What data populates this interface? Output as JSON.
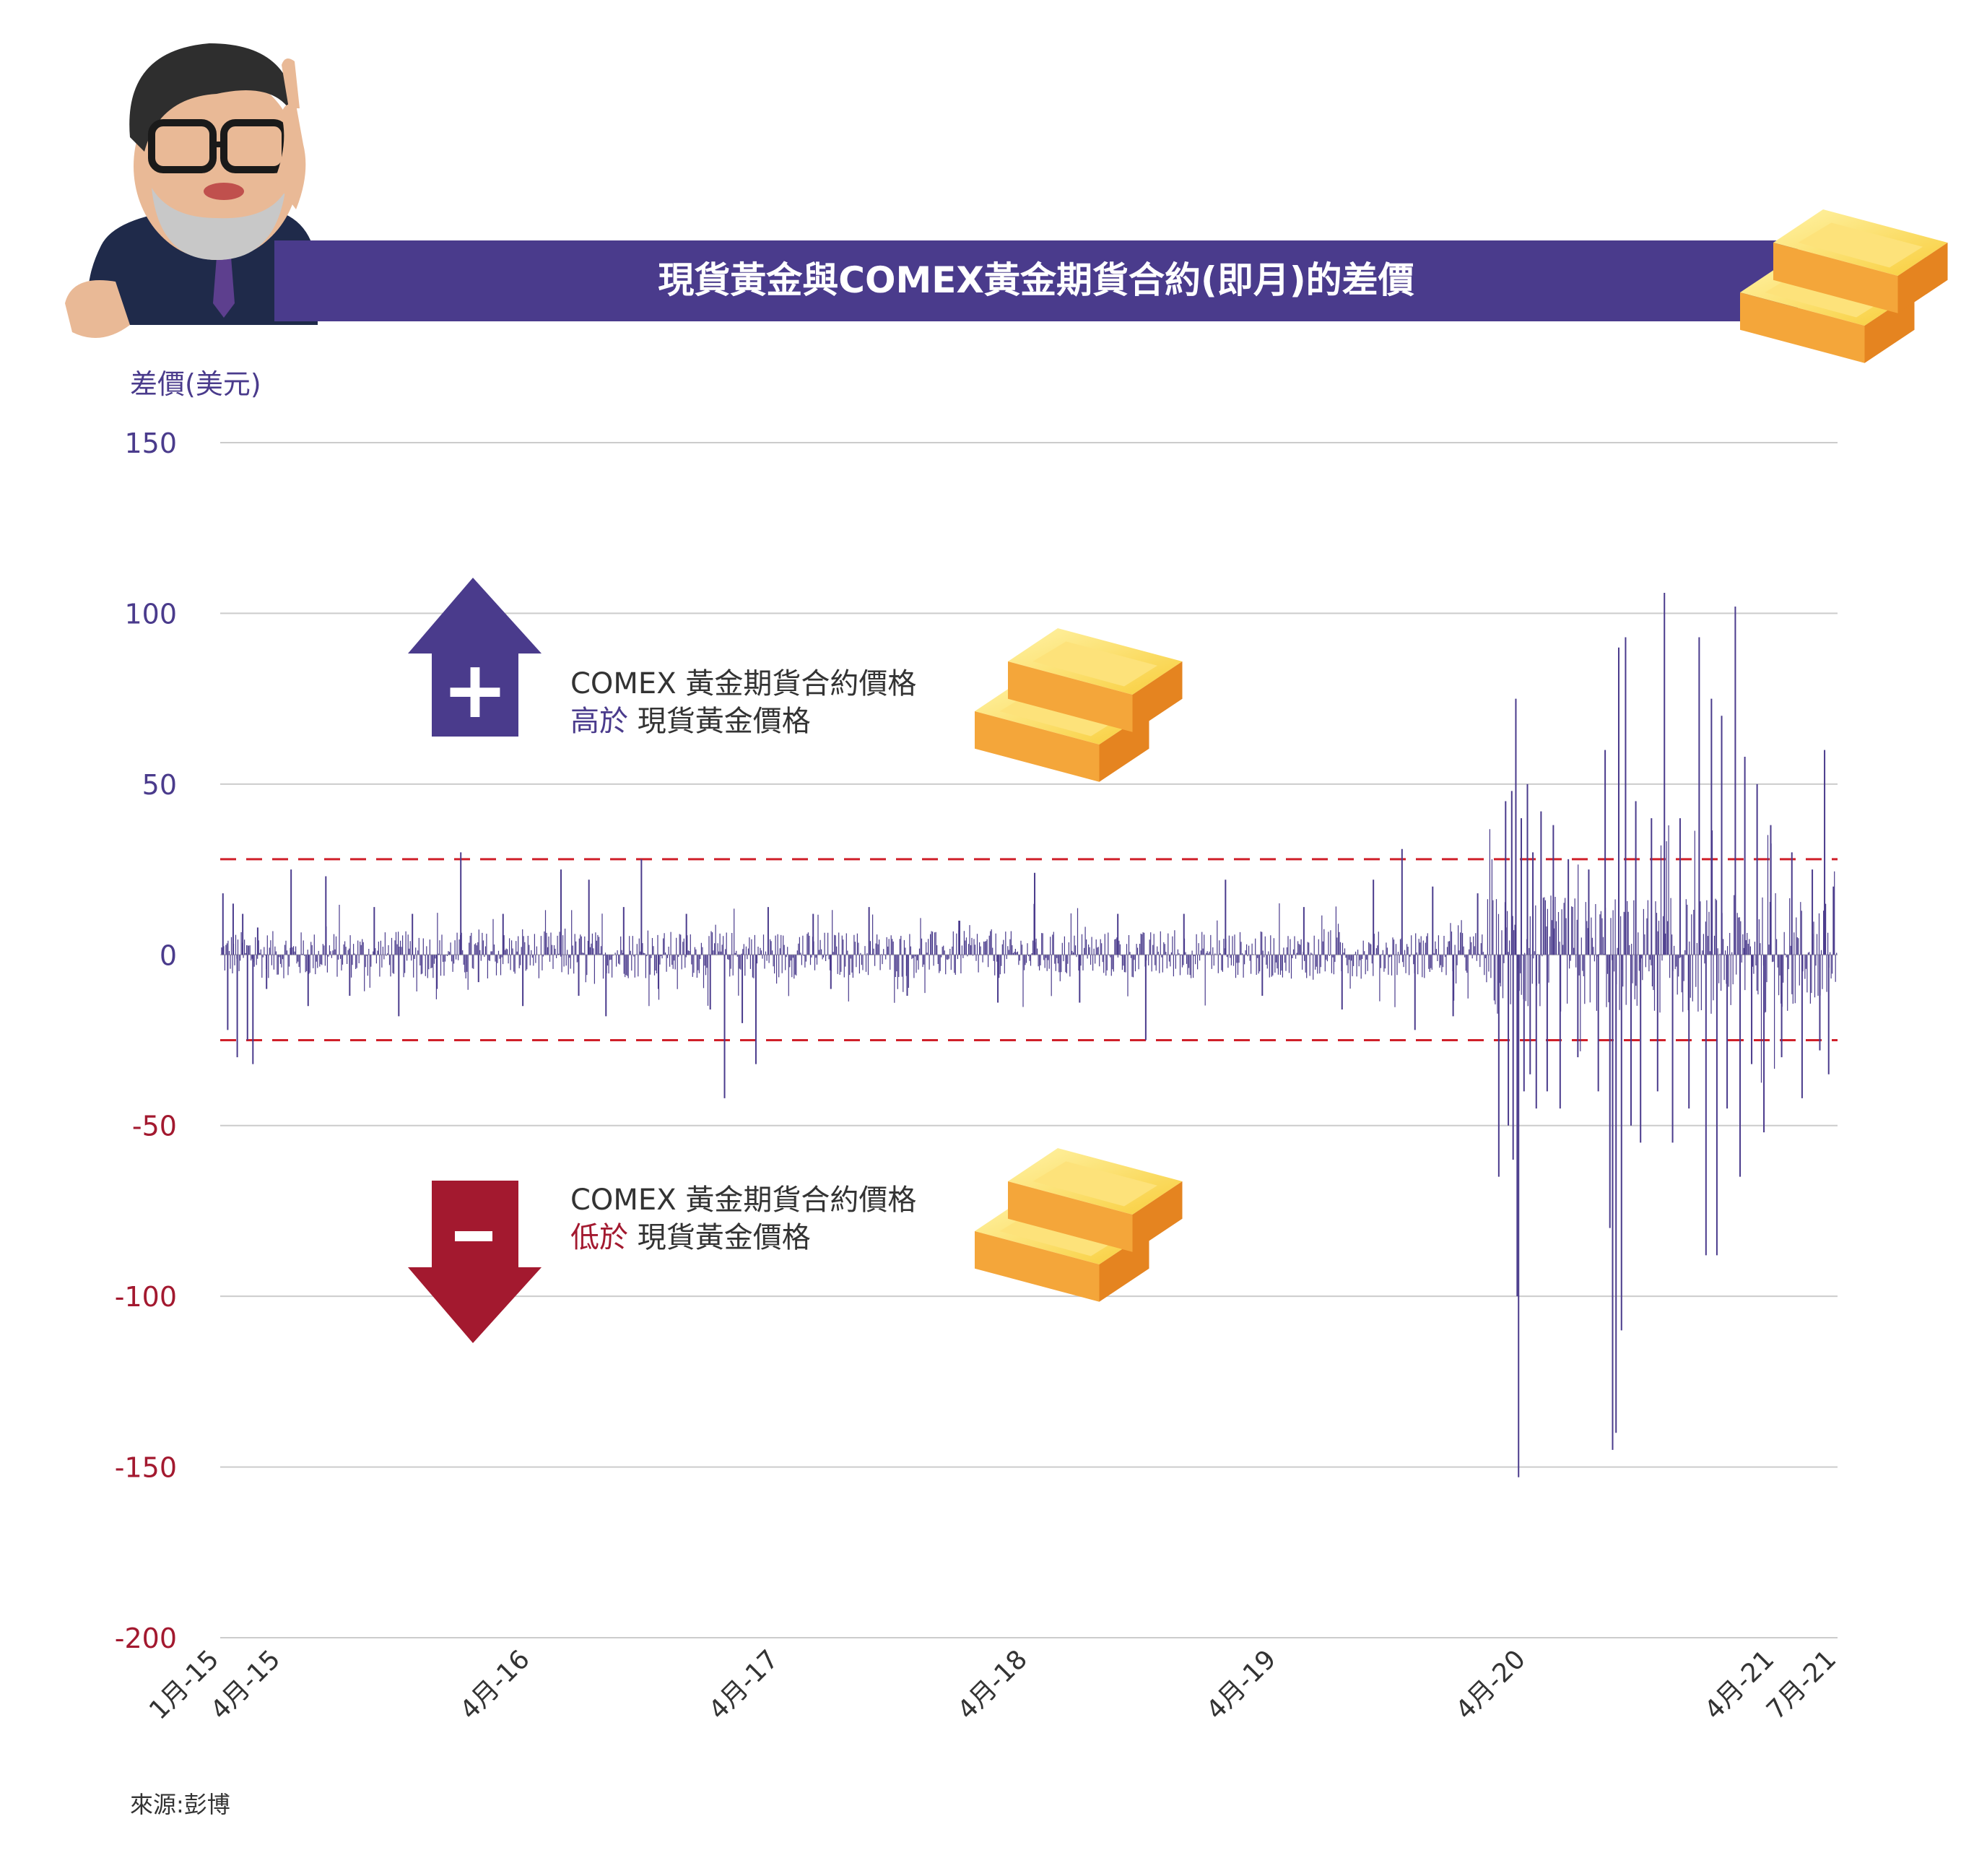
{
  "title": "現貨黃金與COMEX黃金期貨合約(即月)的差價",
  "source": "來源:彭博",
  "colors": {
    "banner": "#4a3b8c",
    "series": "#4a3b8c",
    "positive_label": "#4a3b8c",
    "negative_label": "#a3192f",
    "threshold_line": "#d0202a",
    "grid": "#cccccc",
    "up_arrow": "#4a3b8c",
    "down_arrow": "#a3192f",
    "gold_light": "#fbd65a",
    "gold_mid": "#f6a33a",
    "gold_dark": "#e98a22"
  },
  "icons": {
    "mascot": "cartoon-man-pointing-icon",
    "gold": "gold-bars-icon",
    "up": "plus-up-arrow-icon",
    "down": "minus-down-arrow-icon"
  },
  "callouts": {
    "positive": {
      "line1": "COMEX 黃金期貨合約價格",
      "highlight": "高於",
      "rest": "現貨黃金價格",
      "symbol": "+"
    },
    "negative": {
      "line1": "COMEX 黃金期貨合約價格",
      "highlight": "低於",
      "rest": "現貨黃金價格",
      "symbol": "−"
    }
  },
  "chart_data": {
    "type": "bar",
    "ylabel": "差價(美元)",
    "ylim": [
      -200,
      150
    ],
    "yticks": [
      150,
      100,
      50,
      0,
      -50,
      -100,
      -150,
      -200
    ],
    "xlim": [
      "2015-01-01",
      "2021-07-01"
    ],
    "xticks": [
      {
        "label": "1月-15",
        "date": "2015-01-01"
      },
      {
        "label": "4月-15",
        "date": "2015-04-01"
      },
      {
        "label": "4月-16",
        "date": "2016-04-01"
      },
      {
        "label": "4月-17",
        "date": "2017-04-01"
      },
      {
        "label": "4月-18",
        "date": "2018-04-01"
      },
      {
        "label": "4月-19",
        "date": "2019-04-01"
      },
      {
        "label": "4月-20",
        "date": "2020-04-01"
      },
      {
        "label": "4月-21",
        "date": "2021-04-01"
      },
      {
        "label": "7月-21",
        "date": "2021-07-01"
      }
    ],
    "reference_lines": [
      28,
      -25
    ],
    "grid": true,
    "legend": "none",
    "series": [
      {
        "values": [
          {
            "x": "2015-01-05",
            "y": 18
          },
          {
            "x": "2015-01-12",
            "y": -22
          },
          {
            "x": "2015-01-20",
            "y": 15
          },
          {
            "x": "2015-01-26",
            "y": -30
          },
          {
            "x": "2015-02-03",
            "y": 12
          },
          {
            "x": "2015-02-10",
            "y": -25
          },
          {
            "x": "2015-02-18",
            "y": -32
          },
          {
            "x": "2015-02-25",
            "y": 8
          },
          {
            "x": "2015-03-10",
            "y": -10
          },
          {
            "x": "2015-04-15",
            "y": 25
          },
          {
            "x": "2015-05-10",
            "y": -15
          },
          {
            "x": "2015-06-05",
            "y": 23
          },
          {
            "x": "2015-07-10",
            "y": -12
          },
          {
            "x": "2015-08-15",
            "y": 14
          },
          {
            "x": "2015-09-20",
            "y": -18
          },
          {
            "x": "2015-10-10",
            "y": 12
          },
          {
            "x": "2015-11-15",
            "y": -10
          },
          {
            "x": "2015-12-20",
            "y": 30
          },
          {
            "x": "2016-01-15",
            "y": -8
          },
          {
            "x": "2016-02-20",
            "y": 12
          },
          {
            "x": "2016-03-20",
            "y": -15
          },
          {
            "x": "2016-05-15",
            "y": 25
          },
          {
            "x": "2016-06-10",
            "y": -12
          },
          {
            "x": "2016-06-25",
            "y": 22
          },
          {
            "x": "2016-07-20",
            "y": -18
          },
          {
            "x": "2016-08-15",
            "y": 14
          },
          {
            "x": "2016-09-10",
            "y": 28
          },
          {
            "x": "2016-10-05",
            "y": -10
          },
          {
            "x": "2016-11-15",
            "y": 12
          },
          {
            "x": "2016-12-20",
            "y": -16
          },
          {
            "x": "2017-01-10",
            "y": -42
          },
          {
            "x": "2017-02-05",
            "y": -20
          },
          {
            "x": "2017-02-25",
            "y": -32
          },
          {
            "x": "2017-03-15",
            "y": 14
          },
          {
            "x": "2017-05-20",
            "y": 12
          },
          {
            "x": "2017-06-15",
            "y": -10
          },
          {
            "x": "2017-08-10",
            "y": 14
          },
          {
            "x": "2017-10-05",
            "y": -12
          },
          {
            "x": "2017-12-20",
            "y": 10
          },
          {
            "x": "2018-02-15",
            "y": -14
          },
          {
            "x": "2018-04-10",
            "y": 24
          },
          {
            "x": "2018-06-15",
            "y": -14
          },
          {
            "x": "2018-08-10",
            "y": 12
          },
          {
            "x": "2018-09-20",
            "y": -25
          },
          {
            "x": "2018-11-15",
            "y": 12
          },
          {
            "x": "2019-01-15",
            "y": 22
          },
          {
            "x": "2019-03-10",
            "y": -12
          },
          {
            "x": "2019-05-10",
            "y": 14
          },
          {
            "x": "2019-07-05",
            "y": -16
          },
          {
            "x": "2019-08-20",
            "y": 22
          },
          {
            "x": "2019-10-01",
            "y": 31
          },
          {
            "x": "2019-10-20",
            "y": -22
          },
          {
            "x": "2019-11-15",
            "y": 20
          },
          {
            "x": "2019-12-15",
            "y": -18
          },
          {
            "x": "2020-01-20",
            "y": 18
          },
          {
            "x": "2020-02-20",
            "y": -65
          },
          {
            "x": "2020-03-01",
            "y": 45
          },
          {
            "x": "2020-03-05",
            "y": -50
          },
          {
            "x": "2020-03-10",
            "y": 48
          },
          {
            "x": "2020-03-12",
            "y": -60
          },
          {
            "x": "2020-03-16",
            "y": 75
          },
          {
            "x": "2020-03-18",
            "y": -100
          },
          {
            "x": "2020-03-20",
            "y": -153
          },
          {
            "x": "2020-03-24",
            "y": 40
          },
          {
            "x": "2020-03-28",
            "y": -40
          },
          {
            "x": "2020-04-02",
            "y": 50
          },
          {
            "x": "2020-04-06",
            "y": -35
          },
          {
            "x": "2020-04-10",
            "y": 30
          },
          {
            "x": "2020-04-15",
            "y": -45
          },
          {
            "x": "2020-04-22",
            "y": 42
          },
          {
            "x": "2020-05-01",
            "y": -40
          },
          {
            "x": "2020-05-10",
            "y": 38
          },
          {
            "x": "2020-05-20",
            "y": -45
          },
          {
            "x": "2020-06-01",
            "y": 28
          },
          {
            "x": "2020-06-15",
            "y": -30
          },
          {
            "x": "2020-07-01",
            "y": 25
          },
          {
            "x": "2020-07-15",
            "y": -40
          },
          {
            "x": "2020-07-25",
            "y": 60
          },
          {
            "x": "2020-08-01",
            "y": -80
          },
          {
            "x": "2020-08-05",
            "y": -145
          },
          {
            "x": "2020-08-10",
            "y": -140
          },
          {
            "x": "2020-08-14",
            "y": 90
          },
          {
            "x": "2020-08-18",
            "y": -110
          },
          {
            "x": "2020-08-24",
            "y": 93
          },
          {
            "x": "2020-09-01",
            "y": -50
          },
          {
            "x": "2020-09-08",
            "y": 45
          },
          {
            "x": "2020-09-15",
            "y": -55
          },
          {
            "x": "2020-10-01",
            "y": 40
          },
          {
            "x": "2020-10-10",
            "y": -40
          },
          {
            "x": "2020-10-20",
            "y": 106
          },
          {
            "x": "2020-11-01",
            "y": -55
          },
          {
            "x": "2020-11-12",
            "y": 40
          },
          {
            "x": "2020-11-25",
            "y": -45
          },
          {
            "x": "2020-12-10",
            "y": 93
          },
          {
            "x": "2020-12-20",
            "y": -88
          },
          {
            "x": "2020-12-28",
            "y": 75
          },
          {
            "x": "2021-01-05",
            "y": -88
          },
          {
            "x": "2021-01-12",
            "y": 70
          },
          {
            "x": "2021-01-20",
            "y": -45
          },
          {
            "x": "2021-02-01",
            "y": 102
          },
          {
            "x": "2021-02-08",
            "y": -65
          },
          {
            "x": "2021-02-15",
            "y": 58
          },
          {
            "x": "2021-02-25",
            "y": -32
          },
          {
            "x": "2021-03-05",
            "y": 50
          },
          {
            "x": "2021-03-15",
            "y": -52
          },
          {
            "x": "2021-03-25",
            "y": 38
          },
          {
            "x": "2021-04-10",
            "y": -30
          },
          {
            "x": "2021-04-25",
            "y": 30
          },
          {
            "x": "2021-05-10",
            "y": -42
          },
          {
            "x": "2021-05-25",
            "y": 25
          },
          {
            "x": "2021-06-05",
            "y": -28
          },
          {
            "x": "2021-06-12",
            "y": 60
          },
          {
            "x": "2021-06-18",
            "y": -35
          },
          {
            "x": "2021-06-25",
            "y": 20
          }
        ]
      }
    ]
  }
}
